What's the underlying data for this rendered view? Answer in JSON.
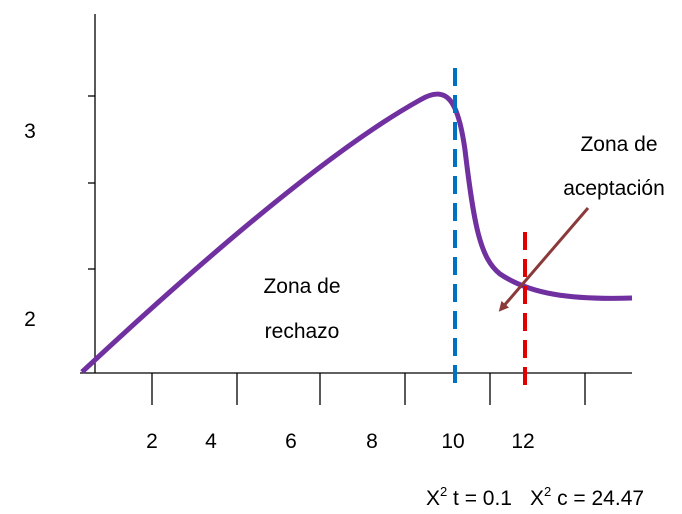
{
  "y_labels": [
    "3",
    "2"
  ],
  "x_labels": [
    "2",
    "4",
    "6",
    "8",
    "10",
    "12"
  ],
  "zones": {
    "accept": [
      "Zona de",
      "aceptación"
    ],
    "reject": [
      "Zona de",
      "rechazo"
    ]
  },
  "formula": [
    {
      "base": "X",
      "sup": "2",
      "rest": " t = 0.1"
    },
    {
      "base": "X",
      "sup": "2",
      "rest": " c = 24.47"
    }
  ]
}
